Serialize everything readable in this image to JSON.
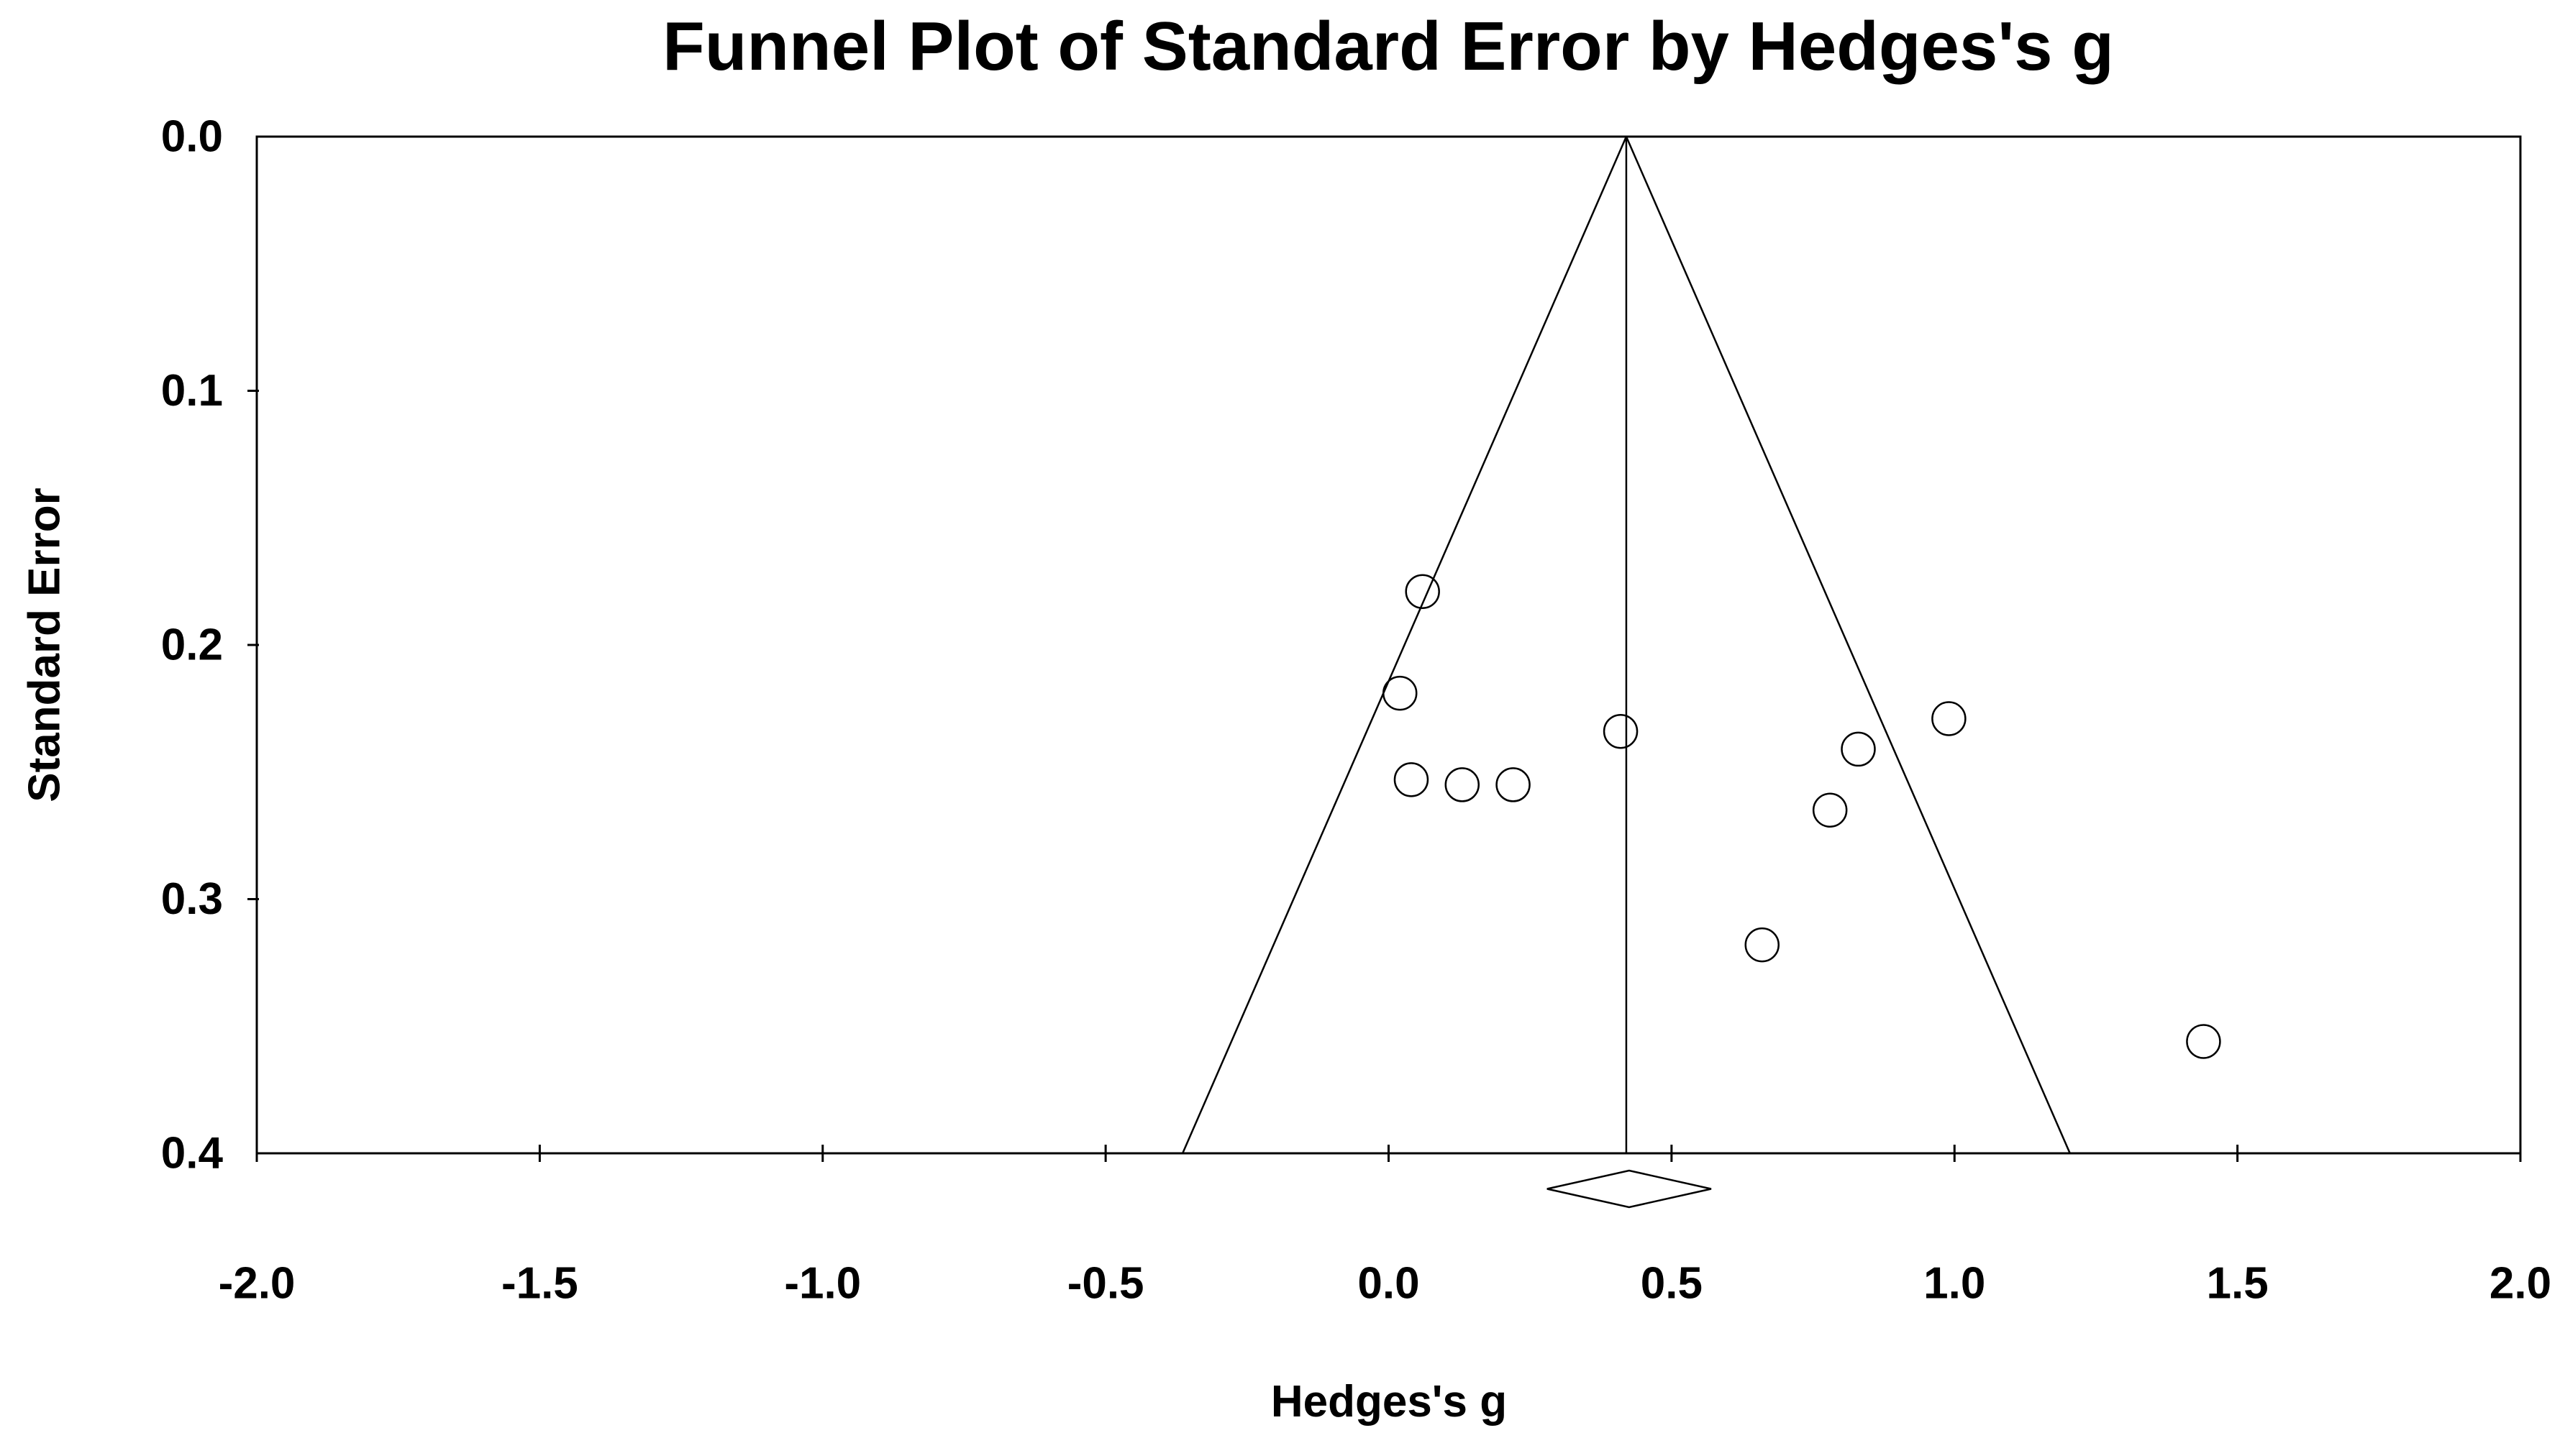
{
  "title": "Funnel Plot of Standard Error by Hedges's g",
  "x_axis": {
    "label": "Hedges's g",
    "tick_labels": [
      "-2.0",
      "-1.5",
      "-1.0",
      "-0.5",
      "0.0",
      "0.5",
      "1.0",
      "1.5",
      "2.0"
    ],
    "tick_values": [
      -2,
      -1.5,
      -1,
      -0.5,
      0,
      0.5,
      1,
      1.5,
      2
    ],
    "min": -2,
    "max": 2
  },
  "y_axis": {
    "label": "Standard Error",
    "tick_labels": [
      "0.0",
      "0.1",
      "0.2",
      "0.3",
      "0.4"
    ],
    "tick_values": [
      0,
      0.1,
      0.2,
      0.3,
      0.4
    ],
    "min": 0,
    "max": 0.4,
    "inverted": true
  },
  "chart_data": {
    "type": "scatter",
    "subtype": "funnel-plot",
    "title": "Funnel Plot of Standard Error by Hedges's g",
    "xlabel": "Hedges's g",
    "ylabel": "Standard Error",
    "xlim": [
      -2,
      2
    ],
    "ylim": [
      0,
      0.4
    ],
    "y_axis_inverted": true,
    "grid": false,
    "legend": false,
    "points_g_se": [
      {
        "g": 0.06,
        "se": 0.179
      },
      {
        "g": 0.02,
        "se": 0.219
      },
      {
        "g": 0.41,
        "se": 0.234
      },
      {
        "g": 0.04,
        "se": 0.253
      },
      {
        "g": 0.13,
        "se": 0.255
      },
      {
        "g": 0.22,
        "se": 0.255
      },
      {
        "g": 0.99,
        "se": 0.229
      },
      {
        "g": 0.83,
        "se": 0.241
      },
      {
        "g": 0.78,
        "se": 0.265
      },
      {
        "g": 0.66,
        "se": 0.318
      },
      {
        "g": 1.44,
        "se": 0.356
      }
    ],
    "mean_effect_g": 0.42,
    "pseudo_ci_z": 1.96,
    "funnel_apex_se": 0,
    "funnel_base_se": 0.4,
    "summary_diamond": {
      "ci_low_g": 0.28,
      "mean_g": 0.42,
      "ci_high_g": 0.57
    }
  },
  "colors": {
    "background": "#ffffff",
    "text": "#000000",
    "line": "#000000"
  }
}
